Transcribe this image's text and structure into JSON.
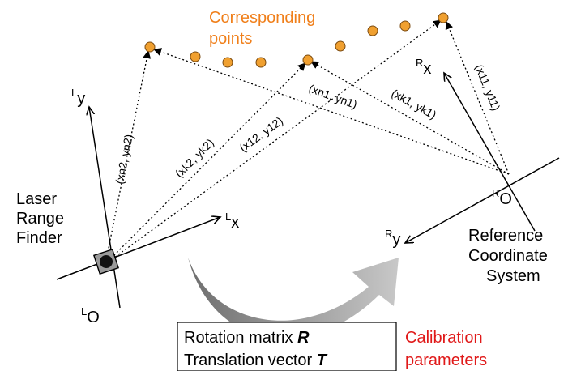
{
  "colors": {
    "points": "#f0a030",
    "point_stroke": "#7a4a10",
    "corresponding_text": "#f07f1a",
    "calibration_text": "#e01919",
    "device": "#999999",
    "curved_arrow": "#8a8a8a"
  },
  "labels": {
    "corresponding_points_line1": "Corresponding",
    "corresponding_points_line2": "points",
    "laser_line1": "Laser",
    "laser_line2": "Range",
    "laser_line3": "Finder",
    "reference_line1": "Reference",
    "reference_line2": "Coordinate",
    "reference_line3": "System",
    "calibration_line1": "Calibration",
    "calibration_line2": "parameters",
    "rotation": "Rotation matrix ",
    "rotation_symbol": "R",
    "translation": "Translation vector ",
    "translation_symbol": "T"
  },
  "axes": {
    "L_y": {
      "sup": "L",
      "main": "y"
    },
    "L_x": {
      "sup": "L",
      "main": "x"
    },
    "L_o": {
      "sup": "L",
      "main": "O"
    },
    "R_x": {
      "sup": "R",
      "main": "x"
    },
    "R_y": {
      "sup": "R",
      "main": "y"
    },
    "R_o": {
      "sup": "R",
      "main": "O"
    }
  },
  "coord_labels": {
    "xn2": "(xn2, yn2)",
    "xk2": "(xk2, yk2)",
    "x12": "(x12, y12)",
    "xn1": "(xn1, yn1)",
    "xk1": "(xk1, yk1)",
    "x11": "(x11, y11)"
  }
}
